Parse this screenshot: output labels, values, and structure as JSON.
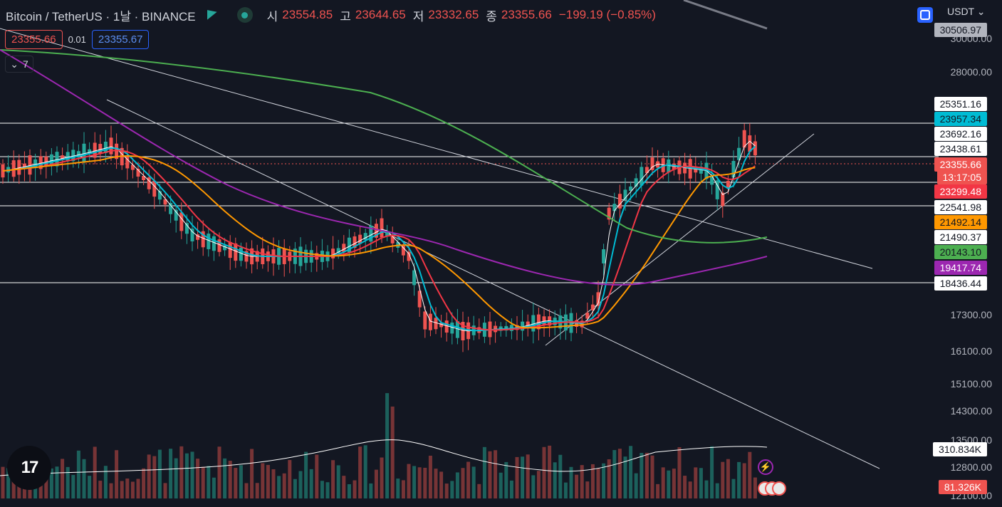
{
  "legend": {
    "symbol": "Bitcoin / TetherUS · 1날 · BINANCE",
    "open_label": "시",
    "open": "23554.85",
    "high_label": "고",
    "high": "23644.65",
    "low_label": "저",
    "low": "23332.65",
    "close_label": "종",
    "close": "23355.66",
    "change": "−199.19 (−0.85%)"
  },
  "order": {
    "sell": "23355.66",
    "spread": "0.01",
    "buy": "23355.67"
  },
  "indicators_count": "7",
  "currency": "USDT",
  "volume_axis": {
    "volume_ma": "310.834K",
    "volume": "81.326K"
  },
  "price_axis": {
    "ticks": [
      "30000.00",
      "28000.00",
      "17300.00",
      "16100.00",
      "15100.00",
      "14300.00",
      "13500.00",
      "12800.00",
      "12100.00"
    ],
    "tags": [
      {
        "value": "30506.97",
        "bg": "#b2b5be",
        "fg": "#131722"
      },
      {
        "value": "25351.16",
        "bg": "#ffffff",
        "fg": "#131722"
      },
      {
        "value": "23957.34",
        "bg": "#00bcd4",
        "fg": "#131722"
      },
      {
        "value": "23692.16",
        "bg": "#ffffff",
        "fg": "#131722"
      },
      {
        "value": "23438.61",
        "bg": "#ffffff",
        "fg": "#131722"
      },
      {
        "value": "23355.66",
        "bg": "#ef5350",
        "fg": "#ffffff"
      },
      {
        "value": "13:17:05",
        "bg": "#ef5350",
        "fg": "#ffffff"
      },
      {
        "value": "23299.48",
        "bg": "#f23645",
        "fg": "#ffffff"
      },
      {
        "value": "22541.98",
        "bg": "#ffffff",
        "fg": "#131722"
      },
      {
        "value": "21492.14",
        "bg": "#ff9800",
        "fg": "#131722"
      },
      {
        "value": "21490.37",
        "bg": "#ffffff",
        "fg": "#131722"
      },
      {
        "value": "20143.10",
        "bg": "#4caf50",
        "fg": "#131722"
      },
      {
        "value": "19417.74",
        "bg": "#9c27b0",
        "fg": "#ffffff"
      },
      {
        "value": "18436.44",
        "bg": "#ffffff",
        "fg": "#131722"
      }
    ]
  },
  "colors": {
    "up": "#26a69a",
    "down": "#ef5350",
    "ema_fast": "#ffffff",
    "ema_cyan": "#00bcd4",
    "ema_red": "#f23645",
    "ema_orange": "#ff9800",
    "ema_green": "#4caf50",
    "ema_purple": "#9c27b0"
  },
  "icons": [
    "green-flag-icon",
    "market-status-icon",
    "screenshot-icon",
    "chevron-down-icon",
    "tradingview-logo-icon",
    "lightning-icon",
    "us-flag-icon"
  ]
}
